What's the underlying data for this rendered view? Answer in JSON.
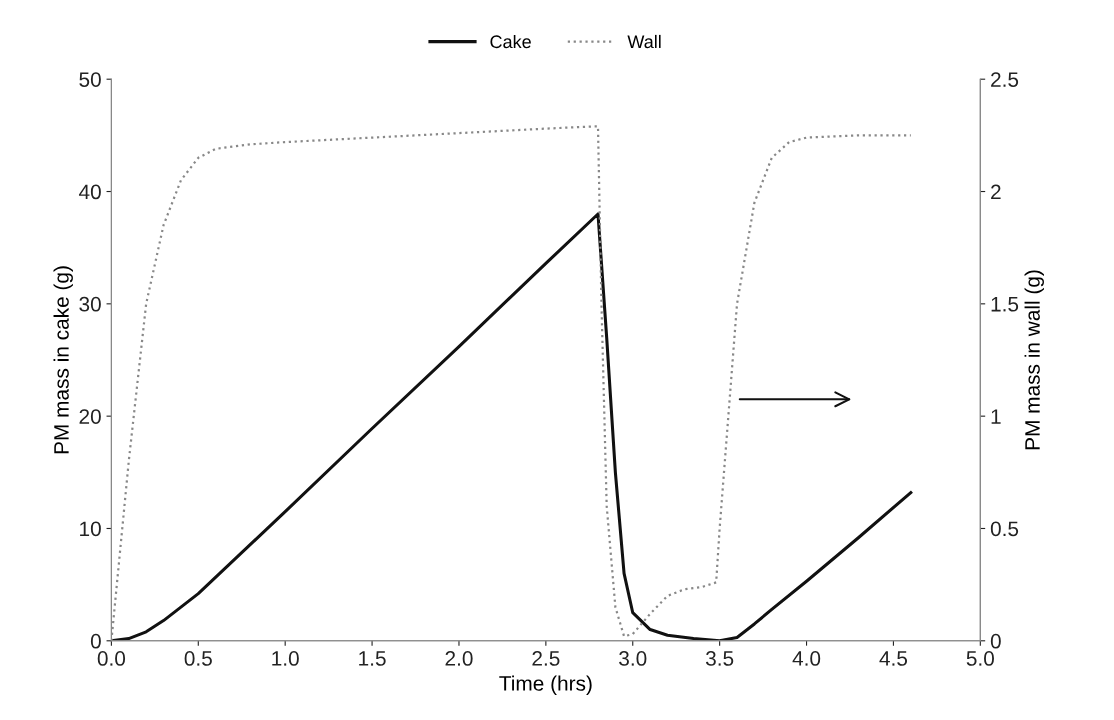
{
  "chart_data": {
    "type": "line",
    "xlabel": "Time (hrs)",
    "ylabel": "PM mass in cake (g)",
    "y2label": "PM mass in wall (g)",
    "xlim": [
      0,
      5
    ],
    "xticks": [
      {
        "value": 0,
        "label": "0.0"
      },
      {
        "value": 0.5,
        "label": "0.5"
      },
      {
        "value": 1,
        "label": "1.0"
      },
      {
        "value": 1.5,
        "label": "1.5"
      },
      {
        "value": 2,
        "label": "2.0"
      },
      {
        "value": 2.5,
        "label": "2.5"
      },
      {
        "value": 3,
        "label": "3.0"
      },
      {
        "value": 3.5,
        "label": "3.5"
      },
      {
        "value": 4,
        "label": "4.0"
      },
      {
        "value": 4.5,
        "label": "4.5"
      },
      {
        "value": 5,
        "label": "5.0"
      }
    ],
    "ylim": [
      0,
      50
    ],
    "yticks": [
      0,
      10,
      20,
      30,
      40,
      50
    ],
    "y2lim": [
      0,
      2.5
    ],
    "y2ticks": [
      0,
      0.5,
      1,
      1.5,
      2,
      2.5
    ],
    "grid": false,
    "legend": "top",
    "marker": "none",
    "series": [
      {
        "name": "Cake",
        "color": "#111111",
        "line_style": "solid",
        "x": [
          0,
          0.1,
          0.2,
          0.3,
          0.4,
          0.5,
          1.0,
          1.5,
          2.0,
          2.5,
          2.8,
          2.85,
          2.9,
          2.95,
          3.0,
          3.1,
          3.2,
          3.35,
          3.5,
          3.6,
          3.7,
          3.8,
          4.0,
          4.3,
          4.6
        ],
        "values": [
          0,
          0.2,
          0.8,
          1.8,
          3.0,
          4.2,
          11.5,
          18.9,
          26.2,
          33.6,
          38.0,
          27,
          15,
          6,
          2.5,
          1.0,
          0.5,
          0.2,
          0,
          0.3,
          1.5,
          2.8,
          5.3,
          9.2,
          13.2
        ]
      },
      {
        "name": "Wall",
        "color": "#888888",
        "line_style": "dotted",
        "axis": "y2",
        "x": [
          0,
          0.1,
          0.2,
          0.3,
          0.4,
          0.5,
          0.6,
          0.8,
          1.0,
          1.5,
          2.0,
          2.5,
          2.78,
          2.8,
          2.82,
          2.85,
          2.9,
          2.95,
          3.0,
          3.1,
          3.2,
          3.3,
          3.4,
          3.48,
          3.5,
          3.55,
          3.6,
          3.7,
          3.8,
          3.9,
          4.0,
          4.3,
          4.6
        ],
        "values": [
          0,
          0.8,
          1.5,
          1.85,
          2.05,
          2.15,
          2.19,
          2.21,
          2.22,
          2.24,
          2.26,
          2.28,
          2.29,
          2.29,
          1.5,
          0.6,
          0.15,
          0.02,
          0.03,
          0.12,
          0.2,
          0.23,
          0.24,
          0.26,
          0.5,
          1.0,
          1.5,
          1.95,
          2.15,
          2.22,
          2.24,
          2.25,
          2.25
        ]
      }
    ]
  }
}
